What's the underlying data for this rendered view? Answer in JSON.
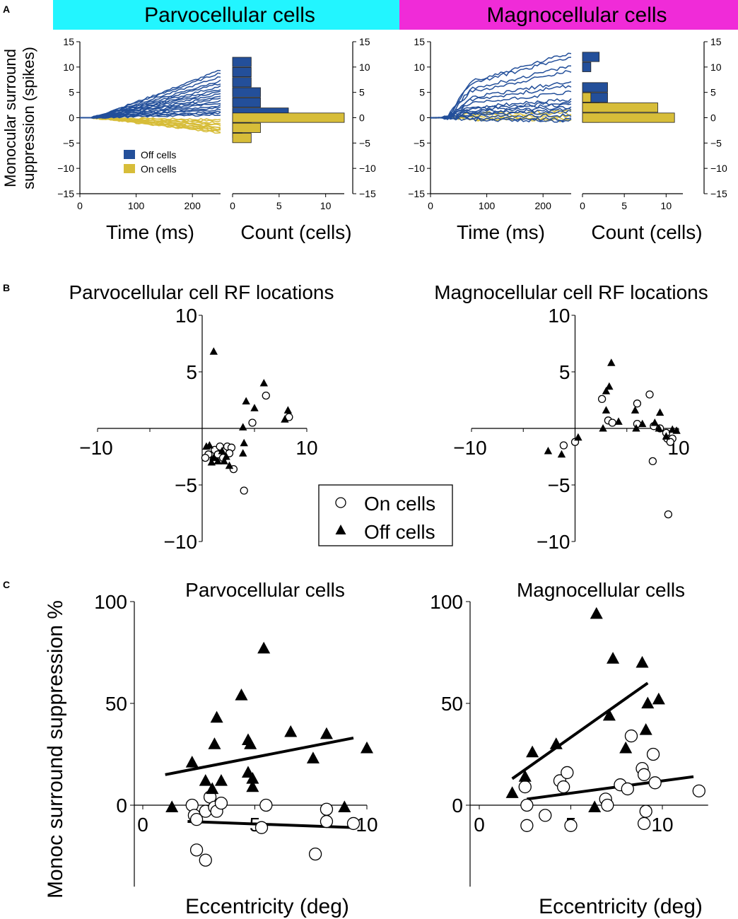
{
  "panel_labels": {
    "a": "A",
    "b": "B",
    "c": "C"
  },
  "colors": {
    "parvo_banner": "#22f5ff",
    "magno_banner": "#f02bd8",
    "off": "#234f9a",
    "on": "#d7bd39",
    "black": "#000000"
  },
  "chart_data": [
    {
      "id": "A",
      "type": "line",
      "banners": {
        "parvo": "Parvocellular cells",
        "magno": "Magnocellular cells"
      },
      "ylabel_lines": [
        "Monocular surround",
        "suppression (spikes)"
      ],
      "xlabel": "Time (ms)",
      "count_xlabel": "Count (cells)",
      "ylim": [
        -15,
        15
      ],
      "yticks": [
        -15,
        -10,
        -5,
        0,
        5,
        10,
        15
      ],
      "xlim": [
        0,
        250
      ],
      "xticks": [
        0,
        100,
        200
      ],
      "legend": {
        "off": "Off cells",
        "on": "On cells"
      },
      "parvo": {
        "off_final": [
          9.4,
          8.9,
          8.1,
          7.3,
          6.8,
          6.2,
          5.6,
          5.2,
          4.7,
          4.2,
          3.8,
          3.3,
          2.9,
          2.4,
          2.0,
          1.6,
          1.2,
          0.9,
          0.6
        ],
        "on_final": [
          -0.4,
          -0.7,
          -1.0,
          -1.3,
          -1.5,
          -1.8,
          -2.0,
          -2.2,
          -2.4,
          -2.6,
          -2.8,
          -3.0
        ],
        "histogram": {
          "count_xlim": [
            0,
            12
          ],
          "count_xticks": [
            0,
            5,
            10
          ],
          "off_bins": [
            [
              10,
              12,
              2
            ],
            [
              8,
              10,
              2
            ],
            [
              6,
              8,
              2
            ],
            [
              4,
              6,
              3
            ],
            [
              2,
              4,
              3
            ],
            [
              0,
              2,
              6
            ],
            [
              -2,
              0,
              2
            ],
            [
              -4,
              -2,
              1
            ]
          ],
          "on_bins": [
            [
              -1,
              1,
              12
            ],
            [
              -3,
              -1,
              3
            ],
            [
              -5,
              -3,
              2
            ]
          ]
        }
      },
      "magno": {
        "off_final": [
          12.8,
          12.1,
          10.2,
          9.2,
          7.2,
          6.3,
          5.1,
          3.6,
          3.1,
          2.6,
          2.1,
          1.6,
          1.1,
          0.5,
          -0.3,
          -0.6
        ],
        "on_final": [
          1.3,
          0.8,
          0.3,
          -0.2,
          -0.5
        ],
        "histogram": {
          "count_xlim": [
            0,
            12
          ],
          "count_xticks": [
            0,
            5,
            10
          ],
          "off_bins": [
            [
              11,
              13,
              2
            ],
            [
              9,
              11,
              1
            ],
            [
              5,
              7,
              3
            ],
            [
              3,
              5,
              3
            ],
            [
              1,
              3,
              2
            ],
            [
              -1,
              1,
              2
            ]
          ],
          "on_bins": [
            [
              3,
              5,
              1
            ],
            [
              1,
              3,
              9
            ],
            [
              -1,
              1,
              11
            ]
          ]
        }
      }
    },
    {
      "id": "B",
      "type": "scatter",
      "xlim": [
        -10,
        10
      ],
      "ylim": [
        -10,
        10
      ],
      "xticks": [
        -10,
        10
      ],
      "yticks": [
        10,
        5,
        -5,
        -10
      ],
      "legend": {
        "on": "On cells",
        "off": "Off cells"
      },
      "parvo": {
        "title": "Parvocellular cell RF locations",
        "on": [
          [
            1.2,
            -1.9
          ],
          [
            1.5,
            -2.3
          ],
          [
            2.0,
            -2.0
          ],
          [
            2.4,
            -1.6
          ],
          [
            2.8,
            -1.7
          ],
          [
            0.6,
            -2.3
          ],
          [
            0.3,
            -2.6
          ],
          [
            2.0,
            -2.6
          ],
          [
            2.6,
            -2.2
          ],
          [
            1.1,
            -2.8
          ],
          [
            3.0,
            -3.6
          ],
          [
            4.0,
            -5.5
          ],
          [
            4.8,
            0.5
          ],
          [
            6.1,
            2.9
          ],
          [
            8.3,
            1.0
          ],
          [
            1.7,
            -1.6
          ]
        ],
        "off": [
          [
            1.1,
            6.8
          ],
          [
            4.2,
            2.4
          ],
          [
            5.0,
            1.8
          ],
          [
            5.9,
            4.0
          ],
          [
            8.2,
            1.6
          ],
          [
            7.9,
            0.8
          ],
          [
            3.9,
            0.1
          ],
          [
            4.0,
            -1.3
          ],
          [
            3.9,
            -2.2
          ],
          [
            2.3,
            -2.5
          ],
          [
            2.1,
            -2.9
          ],
          [
            1.5,
            -2.9
          ],
          [
            1.1,
            -2.6
          ],
          [
            0.4,
            -1.6
          ],
          [
            0.7,
            -1.5
          ],
          [
            2.6,
            -3.3
          ],
          [
            1.9,
            -2.0
          ],
          [
            0.9,
            -3.0
          ]
        ]
      },
      "magno": {
        "title": "Magnocellular cell RF locations",
        "on": [
          [
            -1.1,
            -1.5
          ],
          [
            0.0,
            -1.2
          ],
          [
            2.6,
            2.6
          ],
          [
            3.2,
            0.7
          ],
          [
            3.6,
            0.5
          ],
          [
            6.0,
            2.2
          ],
          [
            7.2,
            3.0
          ],
          [
            6.0,
            0.4
          ],
          [
            7.5,
            -2.9
          ],
          [
            7.6,
            0.2
          ],
          [
            8.2,
            0.0
          ],
          [
            8.9,
            -0.9
          ],
          [
            9.4,
            -0.9
          ],
          [
            9.2,
            -1.2
          ],
          [
            9.0,
            -7.6
          ],
          [
            8.8,
            -0.4
          ]
        ],
        "off": [
          [
            3.0,
            3.3
          ],
          [
            3.3,
            3.7
          ],
          [
            3.5,
            5.8
          ],
          [
            3.0,
            1.6
          ],
          [
            2.7,
            0.0
          ],
          [
            -2.6,
            -2.0
          ],
          [
            -1.3,
            -2.3
          ],
          [
            0.3,
            -0.8
          ],
          [
            4.2,
            0.6
          ],
          [
            5.8,
            1.6
          ],
          [
            6.5,
            0.4
          ],
          [
            7.7,
            0.5
          ],
          [
            8.2,
            1.4
          ],
          [
            8.1,
            0.0
          ],
          [
            8.8,
            -0.7
          ],
          [
            9.4,
            -0.1
          ],
          [
            9.8,
            -0.2
          ],
          [
            5.9,
            0.0
          ]
        ]
      }
    },
    {
      "id": "C",
      "type": "scatter",
      "ylabel": "Monoc surround suppression %",
      "xlabel": "Eccentricity (deg)",
      "yticks": [
        0,
        50,
        100
      ],
      "xticks": [
        0,
        5,
        10
      ],
      "parvo": {
        "title": "Parvocellular cells",
        "xlim": [
          -1.5,
          10
        ],
        "ylim": [
          -40,
          100
        ],
        "off": [
          [
            1.3,
            -1.0
          ],
          [
            2.2,
            21.0
          ],
          [
            2.8,
            12.0
          ],
          [
            3.2,
            30.0
          ],
          [
            3.3,
            43.0
          ],
          [
            3.1,
            8.0
          ],
          [
            3.5,
            12.0
          ],
          [
            4.4,
            54.0
          ],
          [
            4.7,
            32.0
          ],
          [
            4.9,
            13.0
          ],
          [
            4.9,
            9.0
          ],
          [
            4.8,
            30.0
          ],
          [
            4.7,
            16.0
          ],
          [
            5.4,
            77.0
          ],
          [
            6.6,
            36.0
          ],
          [
            7.6,
            23.0
          ],
          [
            8.2,
            35.0
          ],
          [
            9.0,
            -1.0
          ],
          [
            10.0,
            28.0
          ]
        ],
        "on": [
          [
            2.2,
            0.0
          ],
          [
            2.3,
            -5.0
          ],
          [
            2.4,
            -7.0
          ],
          [
            2.8,
            -3.0
          ],
          [
            2.4,
            -22.0
          ],
          [
            2.8,
            -27.0
          ],
          [
            3.0,
            4.0
          ],
          [
            3.2,
            -1.0
          ],
          [
            3.3,
            -3.0
          ],
          [
            3.5,
            1.0
          ],
          [
            5.3,
            -11.0
          ],
          [
            5.5,
            0.0
          ],
          [
            8.2,
            -2.0
          ],
          [
            8.2,
            -8.0
          ],
          [
            7.7,
            -24.0
          ],
          [
            9.4,
            -9.0
          ]
        ],
        "fits": [
          {
            "series": "off",
            "x": [
              1.0,
              9.4
            ],
            "y": [
              15.0,
              33.0
            ]
          },
          {
            "series": "on",
            "x": [
              2.0,
              9.4
            ],
            "y": [
              -8.0,
              -11.0
            ]
          }
        ]
      },
      "magno": {
        "title": "Magnocellular cells",
        "xlim": [
          -1.5,
          12.5
        ],
        "ylim": [
          -40,
          100
        ],
        "off": [
          [
            1.8,
            6.0
          ],
          [
            2.5,
            14.0
          ],
          [
            2.9,
            26.0
          ],
          [
            4.2,
            30.0
          ],
          [
            6.3,
            -1.0
          ],
          [
            6.4,
            94.0
          ],
          [
            7.1,
            44.0
          ],
          [
            7.3,
            72.0
          ],
          [
            8.0,
            28.0
          ],
          [
            8.9,
            70.0
          ],
          [
            9.1,
            37.0
          ],
          [
            9.2,
            50.0
          ],
          [
            9.8,
            52.0
          ]
        ],
        "on": [
          [
            2.5,
            9.0
          ],
          [
            2.6,
            0.0
          ],
          [
            2.6,
            -10.0
          ],
          [
            3.6,
            -5.0
          ],
          [
            4.4,
            12.0
          ],
          [
            4.6,
            9.0
          ],
          [
            4.8,
            16.0
          ],
          [
            5.0,
            -10.0
          ],
          [
            6.9,
            3.0
          ],
          [
            7.0,
            0.0
          ],
          [
            7.7,
            10.0
          ],
          [
            8.3,
            34.0
          ],
          [
            8.1,
            8.0
          ],
          [
            8.9,
            18.0
          ],
          [
            9.0,
            15.0
          ],
          [
            9.1,
            -3.0
          ],
          [
            9.0,
            -9.0
          ],
          [
            9.5,
            25.0
          ],
          [
            9.6,
            11.0
          ],
          [
            12.0,
            7.0
          ]
        ],
        "fits": [
          {
            "series": "off",
            "x": [
              1.8,
              9.2
            ],
            "y": [
              13.0,
              60.0
            ]
          },
          {
            "series": "on",
            "x": [
              2.6,
              11.7
            ],
            "y": [
              3.0,
              14.0
            ]
          }
        ]
      }
    }
  ]
}
